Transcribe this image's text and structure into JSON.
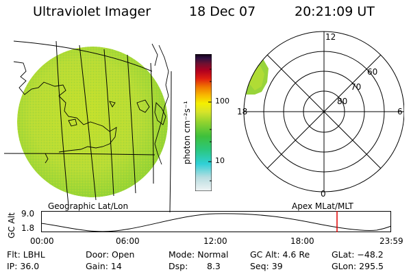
{
  "header": {
    "instrument": "Ultraviolet Imager",
    "date": "18 Dec 07",
    "time": "20:21:09 UT"
  },
  "colorbar": {
    "unit_label": "photon cm⁻²s⁻¹",
    "ticks": [
      "100",
      "10"
    ],
    "colors": [
      "#e6eef0",
      "#b8dde0",
      "#2fd0d6",
      "#2bc77f",
      "#3ec03b",
      "#7fcf2f",
      "#c6e02a",
      "#f4f000",
      "#f8b800",
      "#f07800",
      "#e02010",
      "#b00020",
      "#701030",
      "#301040",
      "#100010"
    ]
  },
  "polar": {
    "mlt_labels": {
      "top": "12",
      "left": "18",
      "right": "6",
      "bottom": "0"
    },
    "lat_labels": [
      "60",
      "70",
      "80"
    ]
  },
  "panels": {
    "left_caption": "Geographic Lat/Lon",
    "right_caption": "Apex MLat/MLT"
  },
  "orbit": {
    "ylabel": "GC Alt",
    "ytick_top": "9.0",
    "ytick_bottom": "1.8",
    "xticks": [
      "00:00",
      "06:00",
      "12:00",
      "18:00",
      "23:59"
    ],
    "marker_color": "#e00000"
  },
  "info": {
    "flt": "Flt: LBHL",
    "ip": "IP: 36.0",
    "door": "Door: Open",
    "gain": "Gain: 14",
    "mode": "Mode: Normal",
    "dsp_label": "Dsp:",
    "dsp_value": "8.3",
    "gcalt": "GC Alt: 4.6 Re",
    "seq": "Seq: 39",
    "glat": "GLat: −48.2",
    "glon": "GLon: 295.5"
  }
}
